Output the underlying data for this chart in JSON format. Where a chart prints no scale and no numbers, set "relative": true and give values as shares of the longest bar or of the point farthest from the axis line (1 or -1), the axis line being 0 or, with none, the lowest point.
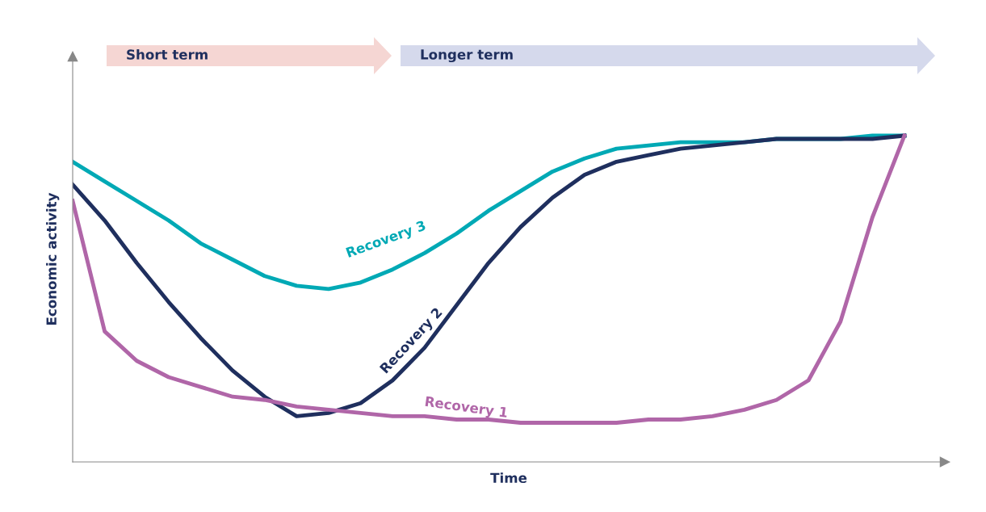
{
  "chart_data": {
    "type": "line",
    "relative": true,
    "xlabel": "Time",
    "ylabel": "Economic activity",
    "annotations": [
      "Short term",
      "Longer term"
    ],
    "categories": [
      null,
      null,
      null,
      null,
      null,
      null,
      null,
      null,
      null,
      null,
      null,
      null,
      null,
      null,
      null,
      null,
      null,
      null,
      null,
      null,
      null,
      null,
      null,
      null,
      null,
      null,
      null
    ],
    "grid": false,
    "legend": false,
    "marker": "none",
    "line_style": "solid",
    "series": [
      {
        "name": "Recovery 3",
        "color": "#00a9b5",
        "values": [
          0.92,
          0.86,
          0.8,
          0.74,
          0.67,
          0.62,
          0.57,
          0.54,
          0.53,
          0.55,
          0.59,
          0.64,
          0.7,
          0.77,
          0.83,
          0.89,
          0.93,
          0.96,
          0.97,
          0.98,
          0.98,
          0.98,
          0.99,
          0.99,
          0.99,
          1.0,
          1.0
        ]
      },
      {
        "name": "Recovery 2",
        "color": "#1f2f5e",
        "values": [
          0.85,
          0.74,
          0.61,
          0.49,
          0.38,
          0.28,
          0.2,
          0.14,
          0.15,
          0.18,
          0.25,
          0.35,
          0.48,
          0.61,
          0.72,
          0.81,
          0.88,
          0.92,
          0.94,
          0.96,
          0.97,
          0.98,
          0.99,
          0.99,
          0.99,
          0.99,
          1.0
        ]
      },
      {
        "name": "Recovery 1",
        "color": "#b066a8",
        "values": [
          0.8,
          0.4,
          0.31,
          0.26,
          0.23,
          0.2,
          0.19,
          0.17,
          0.16,
          0.15,
          0.14,
          0.14,
          0.13,
          0.13,
          0.12,
          0.12,
          0.12,
          0.12,
          0.13,
          0.13,
          0.14,
          0.16,
          0.19,
          0.25,
          0.43,
          0.75,
          1.0
        ]
      }
    ]
  }
}
